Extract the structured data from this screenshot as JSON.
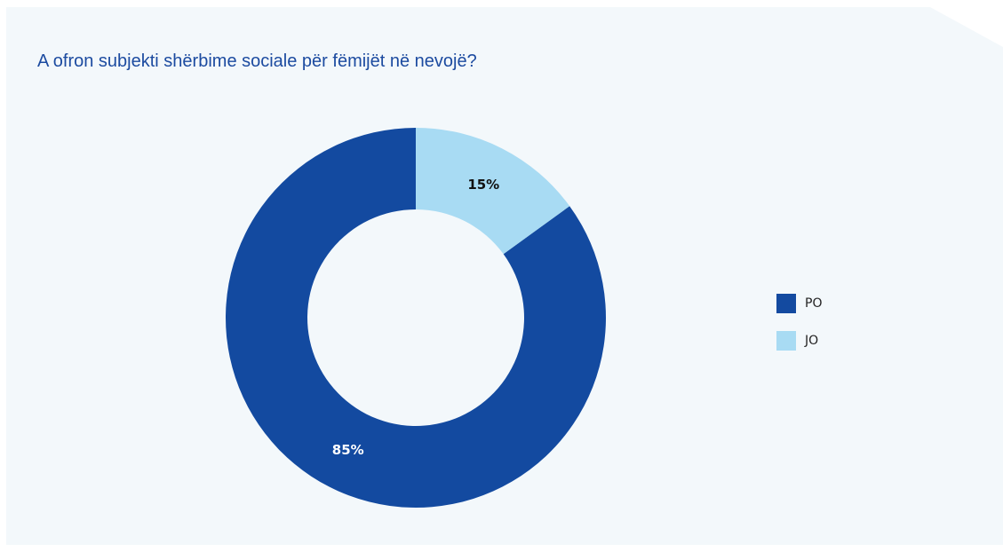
{
  "chart_data": {
    "type": "pie",
    "title": "A ofron subjekti shërbime sociale për fëmijët në nevojë?",
    "categories": [
      "PO",
      "JO"
    ],
    "values": [
      85,
      15
    ],
    "value_labels": [
      "85%",
      "15%"
    ],
    "colors": [
      "#134aa0",
      "#a8dbf3"
    ],
    "label_colors": [
      "#ffffff",
      "#111111"
    ],
    "donut": true,
    "legend": "right"
  }
}
